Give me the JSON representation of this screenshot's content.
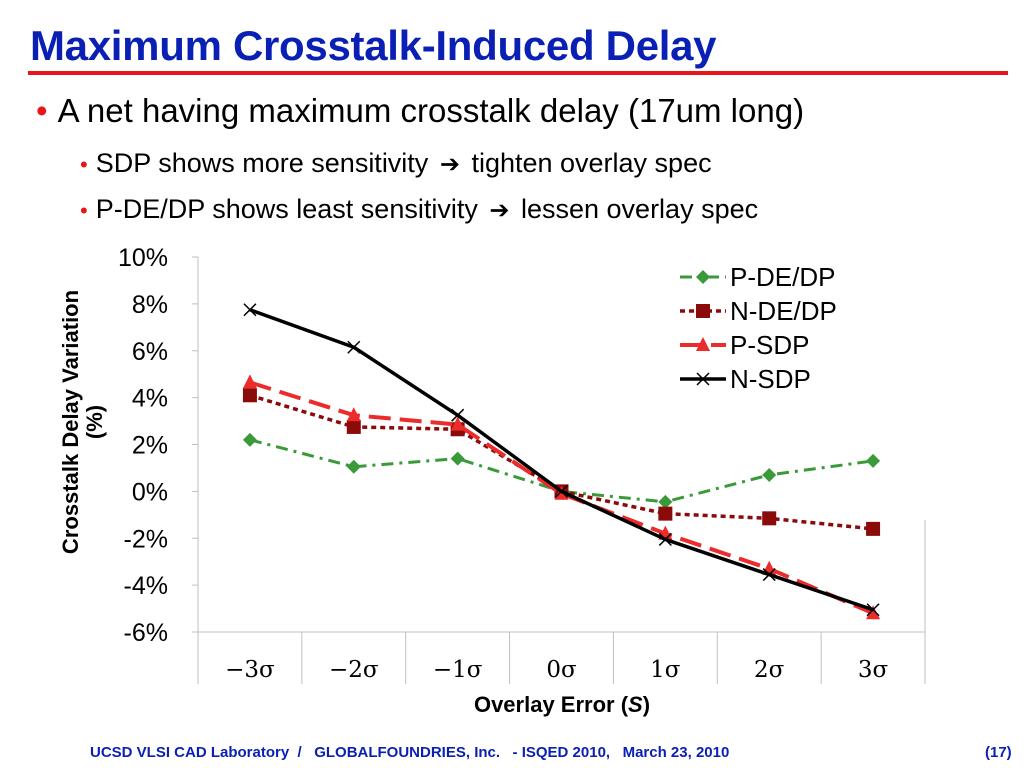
{
  "slide": {
    "title": "Maximum Crosstalk-Induced Delay",
    "bullets": {
      "main": "A net having maximum crosstalk delay (17um long)",
      "sub1_a": "SDP shows more sensitivity",
      "sub1_b": "tighten overlay spec",
      "sub2_a": "P-DE/DP shows least sensitivity",
      "sub2_b": "lessen overlay spec",
      "bullet_glyph": "•",
      "arrow_glyph": "➔"
    },
    "footer": "UCSD VLSI CAD Laboratory  /   GLOBALFOUNDRIES, Inc.   - ISQED 2010,   March 23, 2010",
    "page_number": "(17)"
  },
  "colors": {
    "title": "#0a1fb4",
    "accent": "#e8161b",
    "p_de_dp": "#3a9a3a",
    "n_de_dp": "#8b0a0a",
    "p_sdp": "#ec2b2b",
    "n_sdp": "#000000"
  },
  "chart_data": {
    "type": "line",
    "categories": [
      "−3σ",
      "−2σ",
      "−1σ",
      "0σ",
      "1σ",
      "2σ",
      "3σ"
    ],
    "xlabel": "Overlay Error (",
    "xlabel_italic": "S",
    "xlabel_end": ")",
    "ylabel_line1": "Crosstalk Delay Variation",
    "ylabel_line2": "(%)",
    "ylim": [
      -6,
      10
    ],
    "yticks": [
      -6,
      -4,
      -2,
      0,
      2,
      4,
      6,
      8,
      10
    ],
    "ytick_labels": [
      "-6%",
      "-4%",
      "-2%",
      "0%",
      "2%",
      "4%",
      "6%",
      "8%",
      "10%"
    ],
    "grid": false,
    "legend_position": "top-right",
    "series": [
      {
        "name": "P-DE/DP",
        "values": [
          2.2,
          1.05,
          1.4,
          0.0,
          -0.45,
          0.7,
          1.3
        ],
        "marker": "diamond",
        "dash": "dashdot"
      },
      {
        "name": "N-DE/DP",
        "values": [
          4.1,
          2.75,
          2.65,
          0.0,
          -0.95,
          -1.15,
          -1.6
        ],
        "marker": "square",
        "dash": "dotted"
      },
      {
        "name": "P-SDP",
        "values": [
          4.65,
          3.25,
          2.85,
          -0.1,
          -1.8,
          -3.3,
          -5.2
        ],
        "marker": "triangle",
        "dash": "longdash"
      },
      {
        "name": "N-SDP",
        "values": [
          7.75,
          6.15,
          3.25,
          0.0,
          -2.05,
          -3.55,
          -5.05
        ],
        "marker": "x",
        "dash": "solid"
      }
    ]
  }
}
